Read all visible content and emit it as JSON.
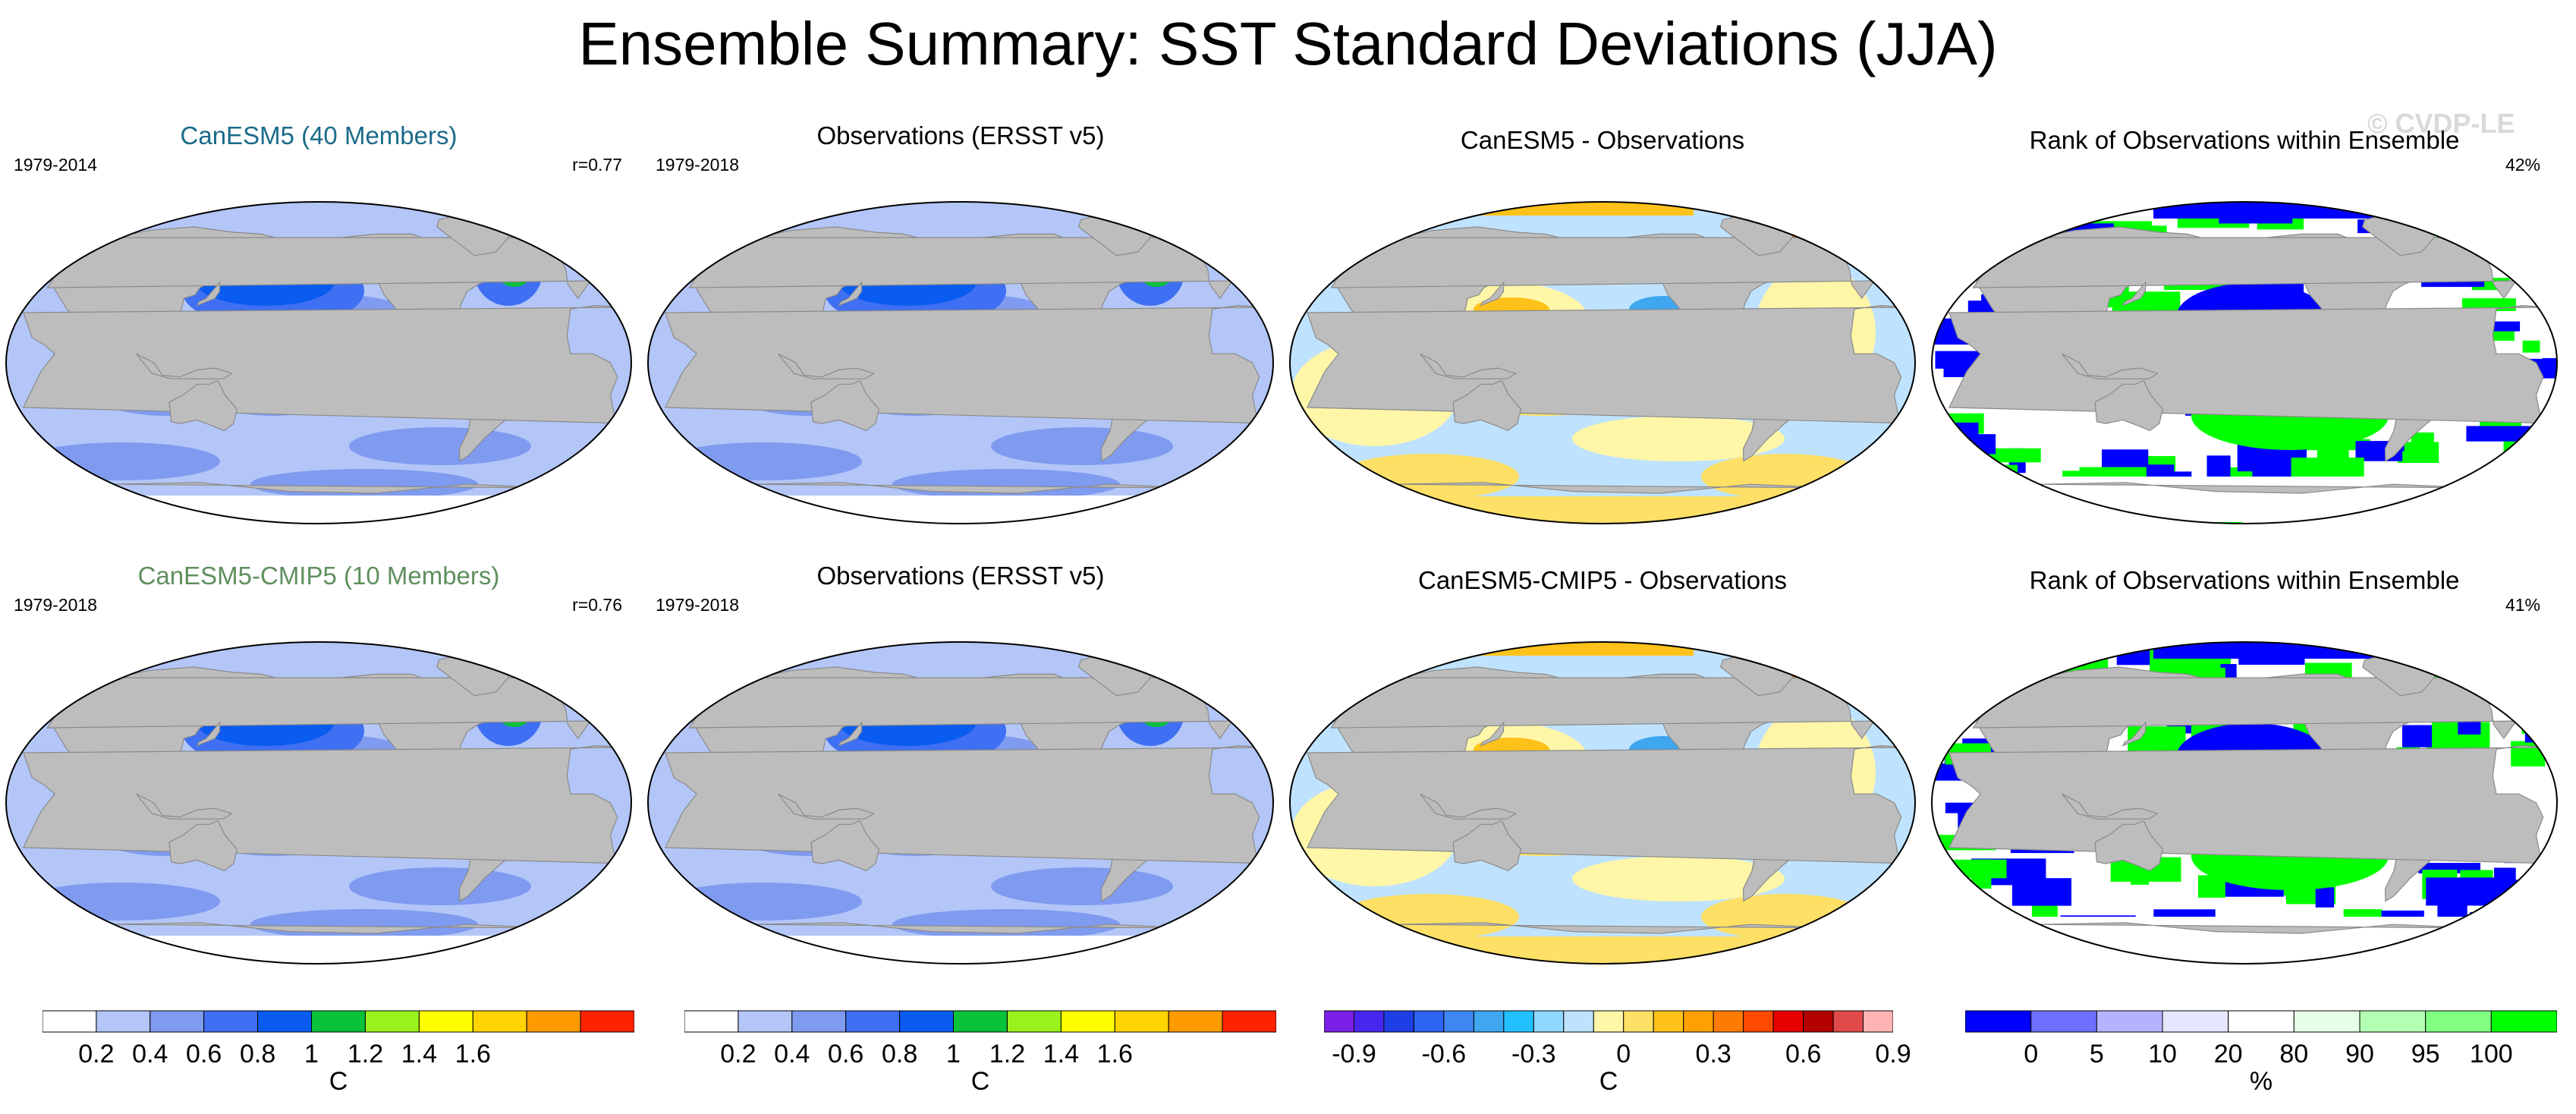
{
  "title": "Ensemble Summary: SST Standard Deviations (JJA)",
  "watermark": "© CVDP-LE",
  "colors": {
    "land": "#bdbdbd",
    "title_model1": "#1b6b8a",
    "title_model2": "#5f8f5f",
    "std": [
      "#ffffff",
      "#b3c6f7",
      "#7f9bf0",
      "#3f6ff2",
      "#0a5cf0",
      "#08c23a",
      "#99f21c",
      "#ffff00",
      "#ffd400",
      "#ff9a00",
      "#ff2200"
    ],
    "diff": [
      "#7a1fe6",
      "#4826f0",
      "#1f3fe6",
      "#2c63f0",
      "#3e86f2",
      "#3fa6f0",
      "#22c0ff",
      "#8ed7ff",
      "#bfe3ff",
      "#fff6a8",
      "#ffe066",
      "#ffc21a",
      "#ff9f00",
      "#ff7a00",
      "#ff4a00",
      "#e60000",
      "#b30000",
      "#e04a4a",
      "#ffb3b3"
    ],
    "rank": [
      "#0000ff",
      "#6f6fff",
      "#b3b3ff",
      "#e6e6ff",
      "#ffffff",
      "#e6ffe6",
      "#b3ffb3",
      "#80ff80",
      "#00ff00"
    ]
  },
  "panels": [
    {
      "title": "CanESM5 (40 Members)",
      "left": "1979-2014",
      "right": "r=0.77",
      "kind": "std",
      "title_color": "model1"
    },
    {
      "title": "Observations (ERSST v5)",
      "left": "1979-2018",
      "right": "",
      "kind": "std",
      "title_color": "black"
    },
    {
      "title": "CanESM5 - Observations",
      "left": "",
      "right": "",
      "kind": "diff",
      "title_color": "black"
    },
    {
      "title": "Rank of Observations within Ensemble",
      "left": "",
      "right": "42%",
      "kind": "rank",
      "title_color": "black"
    },
    {
      "title": "CanESM5-CMIP5 (10 Members)",
      "left": "1979-2018",
      "right": "r=0.76",
      "kind": "std",
      "title_color": "model2"
    },
    {
      "title": "Observations (ERSST v5)",
      "left": "1979-2018",
      "right": "",
      "kind": "std",
      "title_color": "black"
    },
    {
      "title": "CanESM5-CMIP5 - Observations",
      "left": "",
      "right": "",
      "kind": "diff",
      "title_color": "black"
    },
    {
      "title": "Rank of Observations within Ensemble",
      "left": "",
      "right": "41%",
      "kind": "rank",
      "title_color": "black"
    }
  ],
  "colorbars": [
    {
      "kind": "std",
      "unit": "C",
      "labels": [
        "0.2",
        "0.4",
        "0.6",
        "0.8",
        "1",
        "1.2",
        "1.4",
        "1.6"
      ]
    },
    {
      "kind": "std",
      "unit": "C",
      "labels": [
        "0.2",
        "0.4",
        "0.6",
        "0.8",
        "1",
        "1.2",
        "1.4",
        "1.6"
      ]
    },
    {
      "kind": "diff",
      "unit": "C",
      "labels": [
        "-0.9",
        "-0.6",
        "-0.3",
        "0",
        "0.3",
        "0.6",
        "0.9"
      ]
    },
    {
      "kind": "rank",
      "unit": "%",
      "labels": [
        "0",
        "5",
        "10",
        "20",
        "80",
        "90",
        "95",
        "100"
      ]
    }
  ]
}
